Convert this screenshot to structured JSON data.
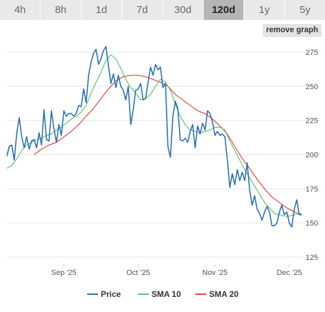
{
  "tabs": [
    {
      "label": "4h",
      "active": false
    },
    {
      "label": "8h",
      "active": false
    },
    {
      "label": "1d",
      "active": false
    },
    {
      "label": "7d",
      "active": false
    },
    {
      "label": "30d",
      "active": false
    },
    {
      "label": "120d",
      "active": true
    },
    {
      "label": "1y",
      "active": false
    },
    {
      "label": "5y",
      "active": false
    }
  ],
  "remove_graph_label": "remove graph",
  "colors": {
    "price": "#2a6fb5",
    "sma10": "#5cc26c",
    "sma20": "#e3443b",
    "grid": "#e6e6e6"
  },
  "chart_data": {
    "type": "line",
    "x_unit": "date",
    "x_range": [
      "2025-08-09",
      "2025-12-06"
    ],
    "ylim": [
      120,
      293
    ],
    "y_ticks": [
      125,
      150,
      175,
      200,
      225,
      250,
      275
    ],
    "x_ticks": [
      {
        "date": "2025-09-01",
        "label": "Sep '25"
      },
      {
        "date": "2025-10-01",
        "label": "Oct '25"
      },
      {
        "date": "2025-11-01",
        "label": "Nov '25"
      },
      {
        "date": "2025-12-01",
        "label": "Dec '25"
      }
    ],
    "legend_position": "bottom-center",
    "series": [
      {
        "name": "Price",
        "color": "#2a6fb5",
        "points": [
          [
            "2025-08-09",
            199
          ],
          [
            "2025-08-10",
            206
          ],
          [
            "2025-08-11",
            207
          ],
          [
            "2025-08-12",
            196
          ],
          [
            "2025-08-13",
            216
          ],
          [
            "2025-08-14",
            227
          ],
          [
            "2025-08-15",
            213
          ],
          [
            "2025-08-16",
            205
          ],
          [
            "2025-08-17",
            213
          ],
          [
            "2025-08-18",
            204
          ],
          [
            "2025-08-19",
            210
          ],
          [
            "2025-08-20",
            211
          ],
          [
            "2025-08-21",
            205
          ],
          [
            "2025-08-22",
            216
          ],
          [
            "2025-08-23",
            207
          ],
          [
            "2025-08-24",
            233
          ],
          [
            "2025-08-25",
            211
          ],
          [
            "2025-08-26",
            210
          ],
          [
            "2025-08-27",
            232
          ],
          [
            "2025-08-28",
            219
          ],
          [
            "2025-08-29",
            209
          ],
          [
            "2025-08-30",
            222
          ],
          [
            "2025-08-31",
            214
          ],
          [
            "2025-09-01",
            232
          ],
          [
            "2025-09-02",
            228
          ],
          [
            "2025-09-03",
            230
          ],
          [
            "2025-09-04",
            230
          ],
          [
            "2025-09-05",
            228
          ],
          [
            "2025-09-06",
            230
          ],
          [
            "2025-09-07",
            236
          ],
          [
            "2025-09-08",
            235
          ],
          [
            "2025-09-09",
            248
          ],
          [
            "2025-09-10",
            238
          ],
          [
            "2025-09-11",
            258
          ],
          [
            "2025-09-12",
            268
          ],
          [
            "2025-09-13",
            274
          ],
          [
            "2025-09-14",
            277
          ],
          [
            "2025-09-15",
            266
          ],
          [
            "2025-09-16",
            270
          ],
          [
            "2025-09-17",
            276
          ],
          [
            "2025-09-18",
            279
          ],
          [
            "2025-09-19",
            265
          ],
          [
            "2025-09-20",
            252
          ],
          [
            "2025-09-21",
            259
          ],
          [
            "2025-09-22",
            249
          ],
          [
            "2025-09-23",
            258
          ],
          [
            "2025-09-24",
            250
          ],
          [
            "2025-09-25",
            247
          ],
          [
            "2025-09-26",
            240
          ],
          [
            "2025-09-27",
            250
          ],
          [
            "2025-09-28",
            222
          ],
          [
            "2025-09-29",
            233
          ],
          [
            "2025-09-30",
            247
          ],
          [
            "2025-10-01",
            248
          ],
          [
            "2025-10-02",
            252
          ],
          [
            "2025-10-03",
            240
          ],
          [
            "2025-10-04",
            241
          ],
          [
            "2025-10-05",
            253
          ],
          [
            "2025-10-06",
            264
          ],
          [
            "2025-10-07",
            258
          ],
          [
            "2025-10-08",
            266
          ],
          [
            "2025-10-09",
            262
          ],
          [
            "2025-10-10",
            264
          ],
          [
            "2025-10-11",
            249
          ],
          [
            "2025-10-12",
            252
          ],
          [
            "2025-10-13",
            206
          ],
          [
            "2025-10-14",
            198
          ],
          [
            "2025-10-15",
            228
          ],
          [
            "2025-10-16",
            239
          ],
          [
            "2025-10-17",
            234
          ],
          [
            "2025-10-18",
            211
          ],
          [
            "2025-10-19",
            210
          ],
          [
            "2025-10-20",
            212
          ],
          [
            "2025-10-21",
            209
          ],
          [
            "2025-10-22",
            217
          ],
          [
            "2025-10-23",
            222
          ],
          [
            "2025-10-24",
            205
          ],
          [
            "2025-10-25",
            221
          ],
          [
            "2025-10-26",
            215
          ],
          [
            "2025-10-27",
            223
          ],
          [
            "2025-10-28",
            218
          ],
          [
            "2025-10-29",
            232
          ],
          [
            "2025-10-30",
            230
          ],
          [
            "2025-10-31",
            224
          ],
          [
            "2025-11-01",
            214
          ],
          [
            "2025-11-02",
            217
          ],
          [
            "2025-11-03",
            214
          ],
          [
            "2025-11-04",
            215
          ],
          [
            "2025-11-05",
            213
          ],
          [
            "2025-11-06",
            196
          ],
          [
            "2025-11-07",
            176
          ],
          [
            "2025-11-08",
            186
          ],
          [
            "2025-11-09",
            178
          ],
          [
            "2025-11-10",
            189
          ],
          [
            "2025-11-11",
            181
          ],
          [
            "2025-11-12",
            187
          ],
          [
            "2025-11-13",
            181
          ],
          [
            "2025-11-14",
            194
          ],
          [
            "2025-11-15",
            174
          ],
          [
            "2025-11-16",
            163
          ],
          [
            "2025-11-17",
            170
          ],
          [
            "2025-11-18",
            160
          ],
          [
            "2025-11-19",
            157
          ],
          [
            "2025-11-20",
            152
          ],
          [
            "2025-11-21",
            158
          ],
          [
            "2025-11-22",
            162
          ],
          [
            "2025-11-23",
            158
          ],
          [
            "2025-11-24",
            148
          ],
          [
            "2025-11-25",
            148
          ],
          [
            "2025-11-26",
            150
          ],
          [
            "2025-11-27",
            158
          ],
          [
            "2025-11-28",
            163
          ],
          [
            "2025-11-29",
            156
          ],
          [
            "2025-11-30",
            158
          ],
          [
            "2025-12-01",
            150
          ],
          [
            "2025-12-02",
            147
          ],
          [
            "2025-12-03",
            160
          ],
          [
            "2025-12-04",
            167
          ],
          [
            "2025-12-05",
            156
          ],
          [
            "2025-12-06",
            156
          ]
        ]
      },
      {
        "name": "SMA 10",
        "color": "#5cc26c",
        "points": [
          [
            "2025-08-09",
            190
          ],
          [
            "2025-08-11",
            192
          ],
          [
            "2025-08-13",
            197
          ],
          [
            "2025-08-15",
            203
          ],
          [
            "2025-08-17",
            207
          ],
          [
            "2025-08-19",
            209
          ],
          [
            "2025-08-21",
            211
          ],
          [
            "2025-08-23",
            212
          ],
          [
            "2025-08-25",
            214
          ],
          [
            "2025-08-27",
            215
          ],
          [
            "2025-08-29",
            218
          ],
          [
            "2025-08-31",
            220
          ],
          [
            "2025-09-02",
            223
          ],
          [
            "2025-09-04",
            226
          ],
          [
            "2025-09-06",
            228
          ],
          [
            "2025-09-08",
            231
          ],
          [
            "2025-09-10",
            236
          ],
          [
            "2025-09-12",
            245
          ],
          [
            "2025-09-14",
            253
          ],
          [
            "2025-09-16",
            260
          ],
          [
            "2025-09-18",
            269
          ],
          [
            "2025-09-20",
            273
          ],
          [
            "2025-09-22",
            270
          ],
          [
            "2025-09-24",
            263
          ],
          [
            "2025-09-26",
            255
          ],
          [
            "2025-09-28",
            249
          ],
          [
            "2025-09-30",
            245
          ],
          [
            "2025-10-02",
            240
          ],
          [
            "2025-10-04",
            241
          ],
          [
            "2025-10-06",
            244
          ],
          [
            "2025-10-08",
            250
          ],
          [
            "2025-10-10",
            255
          ],
          [
            "2025-10-12",
            253
          ],
          [
            "2025-10-14",
            247
          ],
          [
            "2025-10-16",
            237
          ],
          [
            "2025-10-18",
            228
          ],
          [
            "2025-10-20",
            222
          ],
          [
            "2025-10-22",
            218
          ],
          [
            "2025-10-24",
            217
          ],
          [
            "2025-10-26",
            216
          ],
          [
            "2025-10-28",
            217
          ],
          [
            "2025-10-30",
            218
          ],
          [
            "2025-11-01",
            220
          ],
          [
            "2025-11-03",
            220
          ],
          [
            "2025-11-05",
            218
          ],
          [
            "2025-11-07",
            210
          ],
          [
            "2025-11-09",
            203
          ],
          [
            "2025-11-11",
            196
          ],
          [
            "2025-11-13",
            189
          ],
          [
            "2025-11-15",
            183
          ],
          [
            "2025-11-17",
            177
          ],
          [
            "2025-11-19",
            171
          ],
          [
            "2025-11-21",
            165
          ],
          [
            "2025-11-23",
            161
          ],
          [
            "2025-11-25",
            157
          ],
          [
            "2025-11-27",
            156
          ],
          [
            "2025-11-29",
            155
          ],
          [
            "2025-12-01",
            155
          ],
          [
            "2025-12-03",
            156
          ],
          [
            "2025-12-06",
            157
          ]
        ]
      },
      {
        "name": "SMA 20",
        "color": "#e3443b",
        "points": [
          [
            "2025-08-20",
            200
          ],
          [
            "2025-08-23",
            204
          ],
          [
            "2025-08-26",
            207
          ],
          [
            "2025-08-29",
            209
          ],
          [
            "2025-09-01",
            213
          ],
          [
            "2025-09-04",
            217
          ],
          [
            "2025-09-07",
            222
          ],
          [
            "2025-09-10",
            228
          ],
          [
            "2025-09-13",
            234
          ],
          [
            "2025-09-16",
            241
          ],
          [
            "2025-09-19",
            248
          ],
          [
            "2025-09-22",
            254
          ],
          [
            "2025-09-25",
            257
          ],
          [
            "2025-09-28",
            258
          ],
          [
            "2025-10-01",
            258
          ],
          [
            "2025-10-04",
            257
          ],
          [
            "2025-10-07",
            255
          ],
          [
            "2025-10-10",
            253
          ],
          [
            "2025-10-13",
            250
          ],
          [
            "2025-10-16",
            244
          ],
          [
            "2025-10-19",
            240
          ],
          [
            "2025-10-22",
            236
          ],
          [
            "2025-10-25",
            232
          ],
          [
            "2025-10-28",
            230
          ],
          [
            "2025-10-31",
            226
          ],
          [
            "2025-11-03",
            221
          ],
          [
            "2025-11-06",
            215
          ],
          [
            "2025-11-09",
            206
          ],
          [
            "2025-11-12",
            197
          ],
          [
            "2025-11-15",
            190
          ],
          [
            "2025-11-18",
            182
          ],
          [
            "2025-11-21",
            175
          ],
          [
            "2025-11-24",
            169
          ],
          [
            "2025-11-27",
            165
          ],
          [
            "2025-11-30",
            161
          ],
          [
            "2025-12-03",
            158
          ],
          [
            "2025-12-06",
            156
          ]
        ]
      }
    ]
  }
}
